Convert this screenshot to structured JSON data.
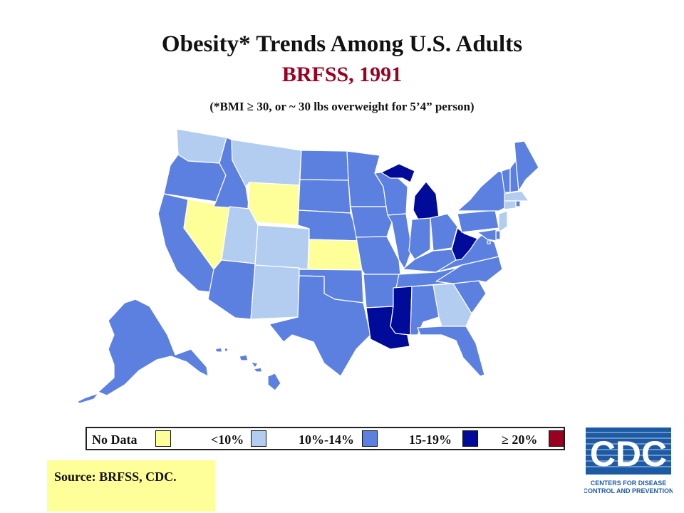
{
  "title": "Obesity* Trends Among U.S. Adults",
  "subtitle": "BRFSS, 1991",
  "note": "(*BMI  ≥ 30, or ~ 30 lbs overweight for 5’4” person)",
  "legend": [
    {
      "label": "No Data",
      "color": "#ffff99"
    },
    {
      "label": "<10%",
      "color": "#b3cdf1"
    },
    {
      "label": "10%-14%",
      "color": "#5b80e0"
    },
    {
      "label": "15-19%",
      "color": "#000c99"
    },
    {
      "label": "≥ 20%",
      "color": "#9a0020"
    }
  ],
  "source": "Source: BRFSS, CDC.",
  "logo": {
    "text": "CDC",
    "line1": "CENTERS FOR DISEASE",
    "line2": "CONTROL AND PREVENTION"
  },
  "colors": {
    "title": "#111111",
    "subtitle": "#9a0020",
    "no_data": "#ffff99",
    "lt10": "#b3cdf1",
    "r10_14": "#5b80e0",
    "r15_19": "#000c99",
    "ge20": "#9a0020"
  },
  "map_data": {
    "year": 1991,
    "categories": [
      "No Data",
      "<10%",
      "10%-14%",
      "15-19%",
      "≥ 20%"
    ],
    "states": {
      "WA": "<10%",
      "OR": "10%-14%",
      "CA": "10%-14%",
      "NV": "No Data",
      "ID": "10%-14%",
      "MT": "<10%",
      "WY": "No Data",
      "UT": "<10%",
      "CO": "<10%",
      "AZ": "10%-14%",
      "NM": "<10%",
      "ND": "10%-14%",
      "SD": "10%-14%",
      "NE": "10%-14%",
      "KS": "No Data",
      "OK": "10%-14%",
      "TX": "10%-14%",
      "MN": "10%-14%",
      "IA": "10%-14%",
      "MO": "10%-14%",
      "AR": "10%-14%",
      "LA": "15-19%",
      "WI": "10%-14%",
      "IL": "10%-14%",
      "MI": "15-19%",
      "IN": "10%-14%",
      "OH": "10%-14%",
      "KY": "10%-14%",
      "TN": "10%-14%",
      "MS": "15-19%",
      "AL": "10%-14%",
      "GA": "<10%",
      "FL": "10%-14%",
      "SC": "10%-14%",
      "NC": "10%-14%",
      "VA": "10%-14%",
      "WV": "15-19%",
      "PA": "10%-14%",
      "NY": "10%-14%",
      "VT": "10%-14%",
      "NH": "10%-14%",
      "ME": "10%-14%",
      "MA": "<10%",
      "RI": "10%-14%",
      "CT": "<10%",
      "NJ": "<10%",
      "DE": "10%-14%",
      "MD": "10%-14%",
      "DC": "10%-14%",
      "AK": "10%-14%",
      "HI": "10%-14%"
    }
  }
}
